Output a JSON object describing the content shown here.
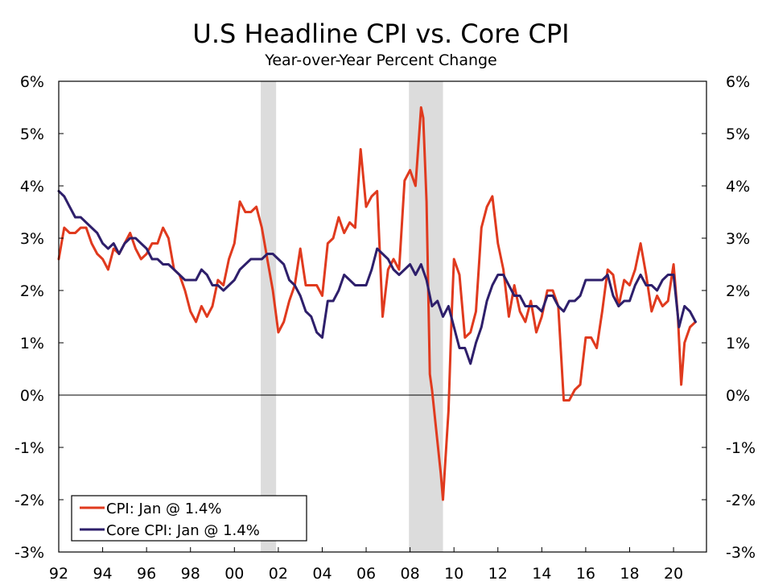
{
  "chart_data": {
    "type": "line",
    "title": "U.S Headline CPI vs. Core CPI",
    "subtitle": "Year-over-Year Percent Change",
    "xlabel": "",
    "ylabel": "",
    "xlim": [
      1992.0,
      2021.5
    ],
    "ylim": [
      -3,
      6
    ],
    "y_ticks": [
      -3,
      -2,
      -1,
      0,
      1,
      2,
      3,
      4,
      5,
      6
    ],
    "y_tick_labels": [
      "-3%",
      "-2%",
      "-1%",
      "0%",
      "1%",
      "2%",
      "3%",
      "4%",
      "5%",
      "6%"
    ],
    "x_ticks": [
      1992,
      1994,
      1996,
      1998,
      2000,
      2002,
      2004,
      2006,
      2008,
      2010,
      2012,
      2014,
      2016,
      2018,
      2020
    ],
    "x_tick_labels": [
      "92",
      "94",
      "96",
      "98",
      "00",
      "02",
      "04",
      "06",
      "08",
      "10",
      "12",
      "14",
      "16",
      "18",
      "20"
    ],
    "recessions": [
      [
        2001.2,
        2001.9
      ],
      [
        2007.95,
        2009.5
      ]
    ],
    "legend_position": "bottom-left",
    "grid": false,
    "series": [
      {
        "name": "CPI: Jan @ 1.4%",
        "color": "#e03a1e",
        "x": [
          1992.0,
          1992.25,
          1992.5,
          1992.75,
          1993.0,
          1993.25,
          1993.5,
          1993.75,
          1994.0,
          1994.25,
          1994.5,
          1994.75,
          1995.0,
          1995.25,
          1995.5,
          1995.75,
          1996.0,
          1996.25,
          1996.5,
          1996.75,
          1997.0,
          1997.25,
          1997.5,
          1997.75,
          1998.0,
          1998.25,
          1998.5,
          1998.75,
          1999.0,
          1999.25,
          1999.5,
          1999.75,
          2000.0,
          2000.25,
          2000.5,
          2000.75,
          2001.0,
          2001.25,
          2001.5,
          2001.75,
          2002.0,
          2002.25,
          2002.5,
          2002.75,
          2003.0,
          2003.25,
          2003.5,
          2003.75,
          2004.0,
          2004.25,
          2004.5,
          2004.75,
          2005.0,
          2005.25,
          2005.5,
          2005.75,
          2006.0,
          2006.25,
          2006.5,
          2006.75,
          2007.0,
          2007.25,
          2007.5,
          2007.75,
          2008.0,
          2008.25,
          2008.5,
          2008.6,
          2008.75,
          2008.9,
          2009.0,
          2009.25,
          2009.4,
          2009.5,
          2009.6,
          2009.75,
          2009.9,
          2010.0,
          2010.25,
          2010.5,
          2010.75,
          2011.0,
          2011.25,
          2011.5,
          2011.75,
          2012.0,
          2012.25,
          2012.5,
          2012.75,
          2013.0,
          2013.25,
          2013.5,
          2013.75,
          2014.0,
          2014.25,
          2014.5,
          2014.75,
          2015.0,
          2015.25,
          2015.5,
          2015.75,
          2016.0,
          2016.25,
          2016.5,
          2016.75,
          2017.0,
          2017.25,
          2017.5,
          2017.75,
          2018.0,
          2018.25,
          2018.5,
          2018.75,
          2019.0,
          2019.25,
          2019.5,
          2019.75,
          2020.0,
          2020.2,
          2020.35,
          2020.5,
          2020.75,
          2021.0
        ],
        "values": [
          2.6,
          3.2,
          3.1,
          3.1,
          3.2,
          3.2,
          2.9,
          2.7,
          2.6,
          2.4,
          2.8,
          2.7,
          2.9,
          3.1,
          2.8,
          2.6,
          2.7,
          2.9,
          2.9,
          3.2,
          3.0,
          2.4,
          2.3,
          2.0,
          1.6,
          1.4,
          1.7,
          1.5,
          1.7,
          2.2,
          2.1,
          2.6,
          2.9,
          3.7,
          3.5,
          3.5,
          3.6,
          3.2,
          2.6,
          2.0,
          1.2,
          1.4,
          1.8,
          2.1,
          2.8,
          2.1,
          2.1,
          2.1,
          1.9,
          2.9,
          3.0,
          3.4,
          3.1,
          3.3,
          3.2,
          4.7,
          3.6,
          3.8,
          3.9,
          1.5,
          2.4,
          2.6,
          2.4,
          4.1,
          4.3,
          4.0,
          5.5,
          5.3,
          3.7,
          0.4,
          0.1,
          -0.9,
          -1.5,
          -2.0,
          -1.3,
          -0.3,
          1.6,
          2.6,
          2.3,
          1.1,
          1.2,
          1.6,
          3.2,
          3.6,
          3.8,
          2.9,
          2.4,
          1.5,
          2.1,
          1.6,
          1.4,
          1.8,
          1.2,
          1.5,
          2.0,
          2.0,
          1.7,
          -0.1,
          -0.1,
          0.1,
          0.2,
          1.1,
          1.1,
          0.9,
          1.6,
          2.4,
          2.3,
          1.7,
          2.2,
          2.1,
          2.4,
          2.9,
          2.3,
          1.6,
          1.9,
          1.7,
          1.8,
          2.5,
          1.5,
          0.2,
          1.0,
          1.3,
          1.4
        ]
      },
      {
        "name": "Core CPI: Jan @ 1.4%",
        "color": "#2e1f6b",
        "x": [
          1992.0,
          1992.25,
          1992.5,
          1992.75,
          1993.0,
          1993.25,
          1993.5,
          1993.75,
          1994.0,
          1994.25,
          1994.5,
          1994.75,
          1995.0,
          1995.25,
          1995.5,
          1995.75,
          1996.0,
          1996.25,
          1996.5,
          1996.75,
          1997.0,
          1997.25,
          1997.5,
          1997.75,
          1998.0,
          1998.25,
          1998.5,
          1998.75,
          1999.0,
          1999.25,
          1999.5,
          1999.75,
          2000.0,
          2000.25,
          2000.5,
          2000.75,
          2001.0,
          2001.25,
          2001.5,
          2001.75,
          2002.0,
          2002.25,
          2002.5,
          2002.75,
          2003.0,
          2003.25,
          2003.5,
          2003.75,
          2004.0,
          2004.25,
          2004.5,
          2004.75,
          2005.0,
          2005.25,
          2005.5,
          2005.75,
          2006.0,
          2006.25,
          2006.5,
          2006.75,
          2007.0,
          2007.25,
          2007.5,
          2007.75,
          2008.0,
          2008.25,
          2008.5,
          2008.75,
          2009.0,
          2009.25,
          2009.5,
          2009.75,
          2010.0,
          2010.25,
          2010.5,
          2010.75,
          2011.0,
          2011.25,
          2011.5,
          2011.75,
          2012.0,
          2012.25,
          2012.5,
          2012.75,
          2013.0,
          2013.25,
          2013.5,
          2013.75,
          2014.0,
          2014.25,
          2014.5,
          2014.75,
          2015.0,
          2015.25,
          2015.5,
          2015.75,
          2016.0,
          2016.25,
          2016.5,
          2016.75,
          2017.0,
          2017.25,
          2017.5,
          2017.75,
          2018.0,
          2018.25,
          2018.5,
          2018.75,
          2019.0,
          2019.25,
          2019.5,
          2019.75,
          2020.0,
          2020.25,
          2020.5,
          2020.75,
          2021.0
        ],
        "values": [
          3.9,
          3.8,
          3.6,
          3.4,
          3.4,
          3.3,
          3.2,
          3.1,
          2.9,
          2.8,
          2.9,
          2.7,
          2.9,
          3.0,
          3.0,
          2.9,
          2.8,
          2.6,
          2.6,
          2.5,
          2.5,
          2.4,
          2.3,
          2.2,
          2.2,
          2.2,
          2.4,
          2.3,
          2.1,
          2.1,
          2.0,
          2.1,
          2.2,
          2.4,
          2.5,
          2.6,
          2.6,
          2.6,
          2.7,
          2.7,
          2.6,
          2.5,
          2.2,
          2.1,
          1.9,
          1.6,
          1.5,
          1.2,
          1.1,
          1.8,
          1.8,
          2.0,
          2.3,
          2.2,
          2.1,
          2.1,
          2.1,
          2.4,
          2.8,
          2.7,
          2.6,
          2.4,
          2.3,
          2.4,
          2.5,
          2.3,
          2.5,
          2.2,
          1.7,
          1.8,
          1.5,
          1.7,
          1.3,
          0.9,
          0.9,
          0.6,
          1.0,
          1.3,
          1.8,
          2.1,
          2.3,
          2.3,
          2.1,
          1.9,
          1.9,
          1.7,
          1.7,
          1.7,
          1.6,
          1.9,
          1.9,
          1.7,
          1.6,
          1.8,
          1.8,
          1.9,
          2.2,
          2.2,
          2.2,
          2.2,
          2.3,
          1.9,
          1.7,
          1.8,
          1.8,
          2.1,
          2.3,
          2.1,
          2.1,
          2.0,
          2.2,
          2.3,
          2.3,
          1.3,
          1.7,
          1.6,
          1.4
        ]
      }
    ]
  }
}
